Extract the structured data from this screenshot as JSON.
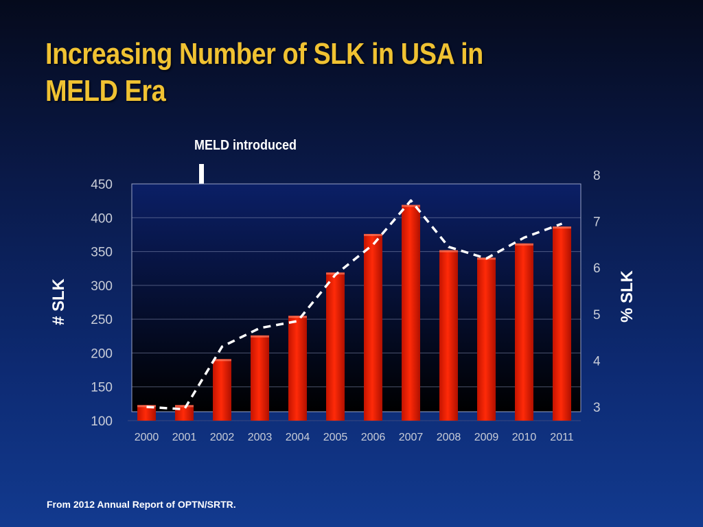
{
  "slide": {
    "title": "Increasing Number of SLK in USA in MELD Era",
    "annotation": "MELD introduced",
    "footer": "From 2012 Annual Report of OPTN/SRTR."
  },
  "chart_data": {
    "type": "bar",
    "categories": [
      "2000",
      "2001",
      "2002",
      "2003",
      "2004",
      "2005",
      "2006",
      "2007",
      "2008",
      "2009",
      "2010",
      "2011"
    ],
    "series": [
      {
        "name": "# SLK",
        "type": "bar",
        "axis": "left",
        "color": "#ee1c00",
        "values": [
          123,
          123,
          191,
          226,
          255,
          319,
          376,
          419,
          352,
          341,
          362,
          387
        ]
      },
      {
        "name": "% SLK",
        "type": "line",
        "axis": "right",
        "style": "dashed",
        "color": "#ffffff",
        "values": [
          3.0,
          2.95,
          4.3,
          4.7,
          4.85,
          5.85,
          6.5,
          7.45,
          6.45,
          6.2,
          6.65,
          6.95
        ]
      }
    ],
    "xlabel": "",
    "ylabel": "# SLK",
    "ylabel_right": "% SLK",
    "ylim": [
      100,
      450
    ],
    "yticks": [
      100,
      150,
      200,
      250,
      300,
      350,
      400,
      450
    ],
    "ylim_right": [
      3,
      8
    ],
    "yticks_right": [
      3,
      4,
      5,
      6,
      7,
      8
    ],
    "grid": true,
    "annotation": {
      "text": "MELD introduced",
      "category": "2001"
    }
  }
}
